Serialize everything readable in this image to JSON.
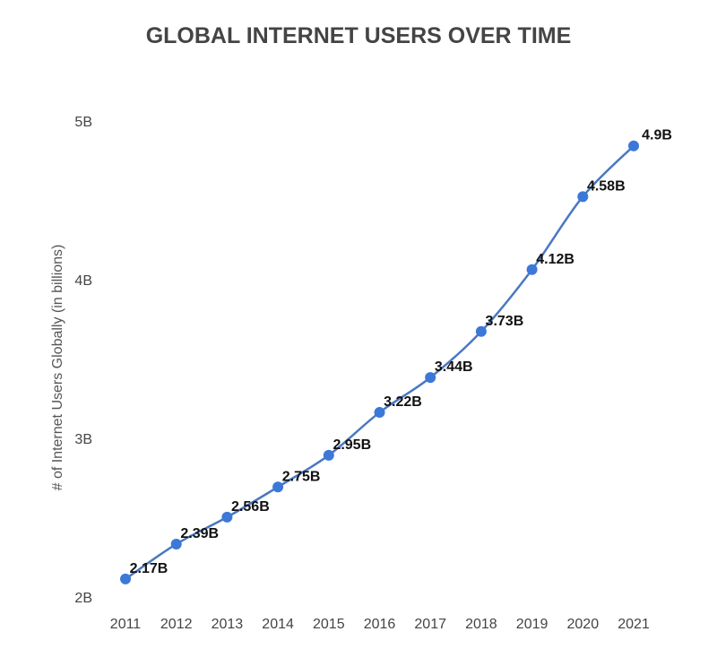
{
  "chart_data": {
    "type": "line",
    "title": "GLOBAL INTERNET USERS OVER TIME",
    "xlabel": "",
    "ylabel": "# of Internet Users Globally (in billions)",
    "categories": [
      "2011",
      "2012",
      "2013",
      "2014",
      "2015",
      "2016",
      "2017",
      "2018",
      "2019",
      "2020",
      "2021"
    ],
    "values": [
      2.17,
      2.39,
      2.56,
      2.75,
      2.95,
      3.22,
      3.44,
      3.73,
      4.12,
      4.58,
      4.9
    ],
    "data_labels": [
      "2.17B",
      "2.39B",
      "2.56B",
      "2.75B",
      "2.95B",
      "3.22B",
      "3.44B",
      "3.73B",
      "4.12B",
      "4.58B",
      "4.9B"
    ],
    "ylim": [
      2,
      5
    ],
    "yticks": [
      2,
      3,
      4,
      5
    ],
    "ytick_labels": [
      "2B",
      "3B",
      "4B",
      "5B"
    ],
    "grid": false,
    "legend": "none",
    "colors": {
      "line": "#4a78c2",
      "marker": "#3b78d8",
      "title": "#444444"
    }
  }
}
